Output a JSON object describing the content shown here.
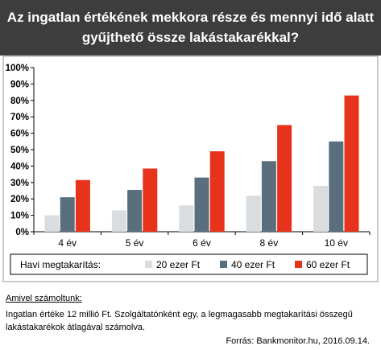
{
  "header": {
    "title_line1": "Az ingatlan értékének mekkora része és mennyi idő alatt",
    "title_line2": "gyűjthető össze lakástakarékkal?"
  },
  "chart_data": {
    "type": "bar",
    "categories": [
      "4 év",
      "5 év",
      "6 év",
      "8 év",
      "10 év"
    ],
    "series": [
      {
        "name": "20 ezer Ft",
        "color": "#d9dde0",
        "values": [
          10,
          13,
          16,
          22,
          28
        ]
      },
      {
        "name": "40 ezer Ft",
        "color": "#5a6f7d",
        "values": [
          21,
          25.5,
          33,
          43,
          55
        ]
      },
      {
        "name": "60 ezer Ft",
        "color": "#e8331c",
        "values": [
          31.5,
          38.5,
          49,
          65,
          83
        ]
      }
    ],
    "ylim": [
      0,
      100
    ],
    "yticks": [
      "0%",
      "10%",
      "20%",
      "30%",
      "40%",
      "50%",
      "60%",
      "70%",
      "80%",
      "90%",
      "100%"
    ],
    "legend_title": "Havi megtakarítás:",
    "legend_position": "bottom",
    "grid": false
  },
  "notes": {
    "title": "Amivel számoltunk:",
    "line1": "Ingatlan értéke 12 millió Ft. Szolgáltatónként egy, a legmagasabb megtakarítási összegű",
    "line2": "lakástakarékok átlagával számolva.",
    "source": "Forrás: Bankmonitor.hu, 2016.09.14."
  }
}
